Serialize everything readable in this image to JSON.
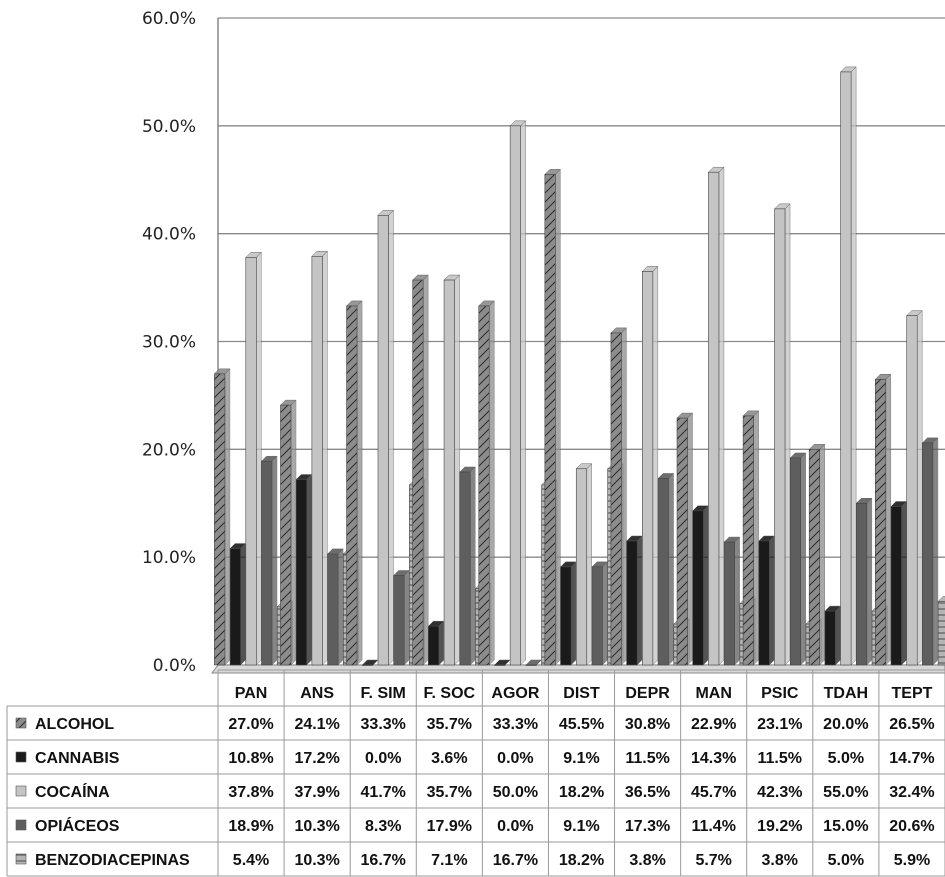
{
  "chart_data": {
    "type": "bar",
    "categories": [
      "PAN",
      "ANS",
      "F. SIM",
      "F. SOC",
      "AGOR",
      "DIST",
      "DEPR",
      "MAN",
      "PSIC",
      "TDAH",
      "TEPT"
    ],
    "series": [
      {
        "name": "ALCOHOL",
        "color": "#8c8c8c",
        "pattern": "diagonal-hatch",
        "values": [
          27.0,
          24.1,
          33.3,
          35.7,
          33.3,
          45.5,
          30.8,
          22.9,
          23.1,
          20.0,
          26.5
        ],
        "labels": [
          "27.0%",
          "24.1%",
          "33.3%",
          "35.7%",
          "33.3%",
          "45.5%",
          "30.8%",
          "22.9%",
          "23.1%",
          "20.0%",
          "26.5%"
        ]
      },
      {
        "name": "CANNABIS",
        "color": "#1a1a1a",
        "pattern": "solid",
        "values": [
          10.8,
          17.2,
          0.0,
          3.6,
          0.0,
          9.1,
          11.5,
          14.3,
          11.5,
          5.0,
          14.7
        ],
        "labels": [
          "10.8%",
          "17.2%",
          "0.0%",
          "3.6%",
          "0.0%",
          "9.1%",
          "11.5%",
          "14.3%",
          "11.5%",
          "5.0%",
          "14.7%"
        ]
      },
      {
        "name": "COCAÍNA",
        "color": "#c4c4c4",
        "pattern": "solid",
        "values": [
          37.8,
          37.9,
          41.7,
          35.7,
          50.0,
          18.2,
          36.5,
          45.7,
          42.3,
          55.0,
          32.4
        ],
        "labels": [
          "37.8%",
          "37.9%",
          "41.7%",
          "35.7%",
          "50.0%",
          "18.2%",
          "36.5%",
          "45.7%",
          "42.3%",
          "55.0%",
          "32.4%"
        ]
      },
      {
        "name": "OPIÁCEOS",
        "color": "#5e5e5e",
        "pattern": "solid",
        "values": [
          18.9,
          10.3,
          8.3,
          17.9,
          0.0,
          9.1,
          17.3,
          11.4,
          19.2,
          15.0,
          20.6
        ],
        "labels": [
          "18.9%",
          "10.3%",
          "8.3%",
          "17.9%",
          "0.0%",
          "9.1%",
          "17.3%",
          "11.4%",
          "19.2%",
          "15.0%",
          "20.6%"
        ]
      },
      {
        "name": "BENZODIACEPINAS",
        "color": "#b0b0b0",
        "pattern": "horizontal-hatch",
        "values": [
          5.4,
          10.3,
          16.7,
          7.1,
          16.7,
          18.2,
          3.8,
          5.7,
          3.8,
          5.0,
          5.9
        ],
        "labels": [
          "5.4%",
          "10.3%",
          "16.7%",
          "7.1%",
          "16.7%",
          "18.2%",
          "3.8%",
          "5.7%",
          "3.8%",
          "5.0%",
          "5.9%"
        ]
      }
    ],
    "y_ticks": [
      "0.0%",
      "10.0%",
      "20.0%",
      "30.0%",
      "40.0%",
      "50.0%",
      "60.0%"
    ],
    "ylim": [
      0,
      60
    ],
    "grid": true,
    "legend": "data-table-below",
    "title": "",
    "xlabel": "",
    "ylabel": ""
  }
}
